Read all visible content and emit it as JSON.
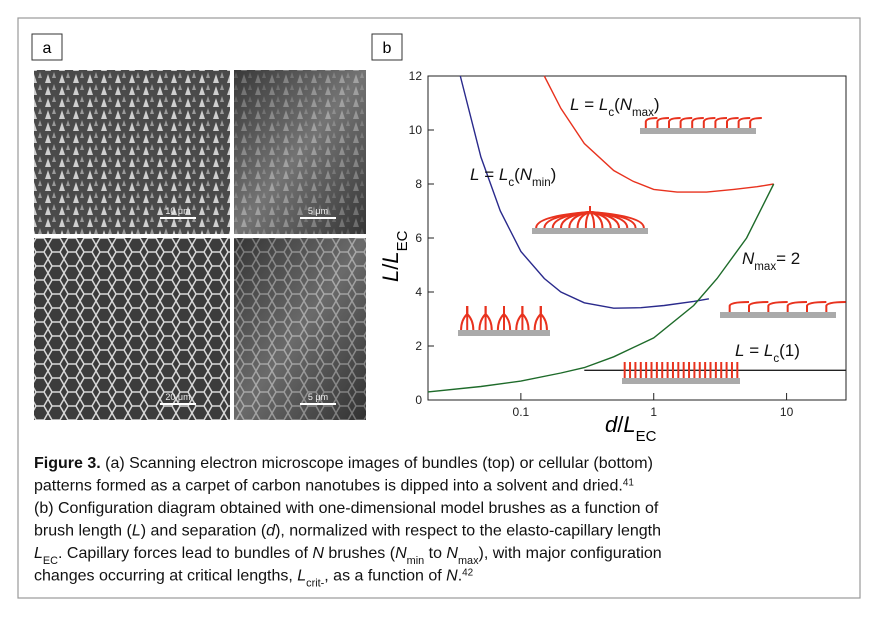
{
  "panel_a": {
    "label": "a",
    "scale_bars": [
      "10 μm",
      "5 μm",
      "20 μm",
      "5 μm"
    ]
  },
  "chart_data": {
    "type": "line",
    "panel_label": "b",
    "x_label": [
      {
        "text": "d",
        "style": "italic"
      },
      {
        "text": "/"
      },
      {
        "text": "L",
        "style": "italic"
      },
      {
        "text": "EC",
        "style": "sub"
      }
    ],
    "y_label": [
      {
        "text": "L",
        "style": "italic"
      },
      {
        "text": "/"
      },
      {
        "text": "L",
        "style": "italic"
      },
      {
        "text": "EC",
        "style": "sub"
      }
    ],
    "log_x": true,
    "xlim": [
      0.02,
      28
    ],
    "xticks": [
      0.1,
      1,
      10
    ],
    "ylim": [
      0,
      12
    ],
    "yticks": [
      0,
      2,
      4,
      6,
      8,
      10,
      12
    ],
    "series": [
      {
        "color": "#2a2a8c",
        "x": [
          0.035,
          0.05,
          0.07,
          0.1,
          0.15,
          0.2,
          0.3,
          0.5,
          0.8,
          1.2,
          2,
          2.6
        ],
        "values": [
          12,
          9,
          7,
          5.5,
          4.5,
          4,
          3.6,
          3.4,
          3.42,
          3.5,
          3.65,
          3.75
        ]
      },
      {
        "color": "#e8321e",
        "x": [
          0.15,
          0.2,
          0.3,
          0.5,
          0.7,
          1,
          1.5,
          2.5,
          4,
          6,
          8
        ],
        "values": [
          12,
          10.8,
          9.5,
          8.5,
          8.1,
          7.8,
          7.7,
          7.7,
          7.8,
          7.9,
          8
        ]
      },
      {
        "color": "#1e6b2a",
        "x": [
          0.02,
          0.05,
          0.1,
          0.2,
          0.3,
          0.5,
          1,
          2,
          3,
          5,
          8
        ],
        "values": [
          0.3,
          0.5,
          0.7,
          1,
          1.2,
          1.6,
          2.3,
          3.5,
          4.5,
          6,
          8
        ]
      },
      {
        "color": "#222222",
        "x": [
          0.3,
          28
        ],
        "values": [
          1.1,
          1.1
        ]
      }
    ],
    "annotations": [
      [
        {
          "text": "L",
          "style": "italic"
        },
        {
          "text": " = "
        },
        {
          "text": "L",
          "style": "italic"
        },
        {
          "text": "c",
          "style": "sub"
        },
        {
          "text": "("
        },
        {
          "text": "N",
          "style": "italic"
        },
        {
          "text": "max",
          "style": "sub"
        },
        {
          "text": ")"
        }
      ],
      [
        {
          "text": "L",
          "style": "italic"
        },
        {
          "text": " = "
        },
        {
          "text": "L",
          "style": "italic"
        },
        {
          "text": "c",
          "style": "sub"
        },
        {
          "text": "("
        },
        {
          "text": "N",
          "style": "italic"
        },
        {
          "text": "min",
          "style": "sub"
        },
        {
          "text": ")"
        }
      ],
      [
        {
          "text": "N",
          "style": "italic"
        },
        {
          "text": "max",
          "style": "sub"
        },
        {
          "text": "= 2"
        }
      ],
      [
        {
          "text": "L",
          "style": "italic"
        },
        {
          "text": " = "
        },
        {
          "text": "L",
          "style": "italic"
        },
        {
          "text": "c",
          "style": "sub"
        },
        {
          "text": "(1)"
        }
      ]
    ]
  },
  "caption": {
    "lines": [
      [
        {
          "text": "Figure 3.",
          "style": "bold"
        },
        {
          "text": " (a) Scanning electron microscope images of bundles (top) or cellular (bottom)"
        }
      ],
      [
        {
          "text": "patterns formed as a carpet of carbon nanotubes is dipped into a solvent and dried."
        },
        {
          "text": "41",
          "style": "sup"
        }
      ],
      [
        {
          "text": "(b) Configuration diagram obtained with one-dimensional model brushes as a function of"
        }
      ],
      [
        {
          "text": "brush length ("
        },
        {
          "text": "L",
          "style": "italic"
        },
        {
          "text": ") and separation ("
        },
        {
          "text": "d",
          "style": "italic"
        },
        {
          "text": "), normalized with respect to the elasto-capillary length"
        }
      ],
      [
        {
          "text": "L",
          "style": "italic"
        },
        {
          "text": "EC",
          "style": "sub"
        },
        {
          "text": ". Capillary forces lead to bundles of "
        },
        {
          "text": "N",
          "style": "italic"
        },
        {
          "text": " brushes ("
        },
        {
          "text": "N",
          "style": "italic"
        },
        {
          "text": "min",
          "style": "sub"
        },
        {
          "text": " to "
        },
        {
          "text": "N",
          "style": "italic"
        },
        {
          "text": "max",
          "style": "sub"
        },
        {
          "text": "), with major configuration"
        }
      ],
      [
        {
          "text": "changes occurring at critical lengths, "
        },
        {
          "text": "L",
          "style": "italic"
        },
        {
          "text": "crit-",
          "style": "sub"
        },
        {
          "text": ", as a function of "
        },
        {
          "text": "N",
          "style": "italic"
        },
        {
          "text": "."
        },
        {
          "text": "42",
          "style": "sup"
        }
      ]
    ]
  }
}
